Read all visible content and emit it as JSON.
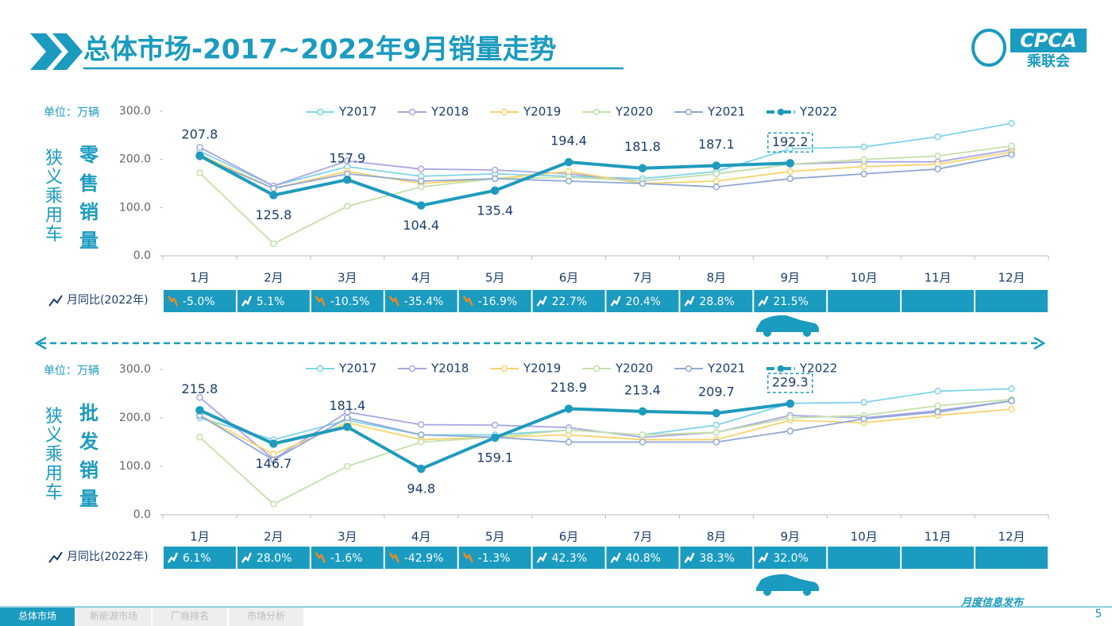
{
  "header": {
    "title": "总体市场-2017~2022年9月销量走势",
    "logo": "CPCA",
    "logo_sub": "乘联会"
  },
  "chart_data": [
    {
      "type": "line",
      "unit": "单位：万辆",
      "side_label": "狭义乘用车",
      "title": "零售销量",
      "categories": [
        "1月",
        "2月",
        "3月",
        "4月",
        "5月",
        "6月",
        "7月",
        "8月",
        "9月",
        "10月",
        "11月",
        "12月"
      ],
      "ylim": [
        0,
        300
      ],
      "yticks": [
        {
          "value": 0,
          "label": "0.0"
        },
        {
          "value": 100,
          "label": "100.0"
        },
        {
          "value": 200,
          "label": "200.0"
        },
        {
          "value": 300,
          "label": "300.0"
        }
      ],
      "series": [
        {
          "name": "Y2017",
          "color": "#7fd3ea",
          "values": [
            217,
            145,
            185,
            165,
            170,
            165,
            160,
            175,
            222,
            226,
            247,
            275
          ]
        },
        {
          "name": "Y2018",
          "color": "#a7a7e6",
          "values": [
            225,
            145,
            197,
            180,
            178,
            170,
            155,
            170,
            190,
            195,
            195,
            220
          ]
        },
        {
          "name": "Y2019",
          "color": "#f7d36b",
          "values": [
            210,
            140,
            175,
            150,
            160,
            175,
            150,
            155,
            175,
            185,
            190,
            215
          ]
        },
        {
          "name": "Y2020",
          "color": "#c4e0a8",
          "values": [
            172,
            25,
            103,
            143,
            160,
            163,
            155,
            170,
            190,
            200,
            207,
            228
          ]
        },
        {
          "name": "Y2021",
          "color": "#8fa8d6",
          "values": [
            205,
            140,
            170,
            155,
            160,
            155,
            150,
            143,
            160,
            170,
            180,
            210
          ]
        },
        {
          "name": "Y2022",
          "color": "#1f9bbd",
          "values": [
            207.8,
            125.8,
            157.9,
            104.4,
            135.4,
            194.4,
            181.8,
            187.1,
            192.2,
            null,
            null,
            null
          ]
        }
      ],
      "yoy_label": "月同比(2022年)",
      "yoy": [
        -5.0,
        5.1,
        -10.5,
        -35.4,
        -16.9,
        22.7,
        20.4,
        28.8,
        21.5,
        null,
        null,
        null
      ],
      "yoy_labels": [
        "-5.0%",
        "5.1%",
        "-10.5%",
        "-35.4%",
        "-16.9%",
        "22.7%",
        "20.4%",
        "28.8%",
        "21.5%",
        null,
        null,
        null
      ]
    },
    {
      "type": "line",
      "unit": "单位：万辆",
      "side_label": "狭义乘用车",
      "title": "批发销量",
      "categories": [
        "1月",
        "2月",
        "3月",
        "4月",
        "5月",
        "6月",
        "7月",
        "8月",
        "9月",
        "10月",
        "11月",
        "12月"
      ],
      "ylim": [
        0,
        300
      ],
      "yticks": [
        {
          "value": 0,
          "label": "0.0"
        },
        {
          "value": 100,
          "label": "100.0"
        },
        {
          "value": 200,
          "label": "200.0"
        },
        {
          "value": 300,
          "label": "300.0"
        }
      ],
      "series": [
        {
          "name": "Y2017",
          "color": "#7fd3ea",
          "values": [
            200,
            155,
            195,
            165,
            165,
            175,
            165,
            185,
            230,
            232,
            255,
            260
          ]
        },
        {
          "name": "Y2018",
          "color": "#a7a7e6",
          "values": [
            242,
            115,
            212,
            186,
            185,
            180,
            160,
            170,
            205,
            200,
            215,
            235
          ]
        },
        {
          "name": "Y2019",
          "color": "#f7d36b",
          "values": [
            205,
            125,
            190,
            155,
            160,
            165,
            155,
            155,
            195,
            190,
            205,
            218
          ]
        },
        {
          "name": "Y2020",
          "color": "#c4e0a8",
          "values": [
            160,
            22,
            100,
            150,
            160,
            175,
            165,
            170,
            200,
            205,
            225,
            238
          ]
        },
        {
          "name": "Y2021",
          "color": "#8fa8d6",
          "values": [
            205,
            113,
            200,
            165,
            160,
            150,
            150,
            150,
            173,
            198,
            212,
            235
          ]
        },
        {
          "name": "Y2022",
          "color": "#1f9bbd",
          "values": [
            215.8,
            146.7,
            181.4,
            94.8,
            159.1,
            218.9,
            213.4,
            209.7,
            229.3,
            null,
            null,
            null
          ]
        }
      ],
      "yoy_label": "月同比(2022年)",
      "yoy": [
        6.1,
        28.0,
        -1.6,
        -42.9,
        -1.3,
        42.3,
        40.8,
        38.3,
        32.0,
        null,
        null,
        null
      ],
      "yoy_labels": [
        "6.1%",
        "28.0%",
        "-1.6%",
        "-42.9%",
        "-1.3%",
        "42.3%",
        "40.8%",
        "38.3%",
        "32.0%",
        null,
        null,
        null
      ]
    }
  ],
  "footer": {
    "tabs": [
      "总体市场",
      "新能源市场",
      "厂商排名",
      "市场分析"
    ],
    "note": "月度信息发布",
    "page": "5"
  }
}
